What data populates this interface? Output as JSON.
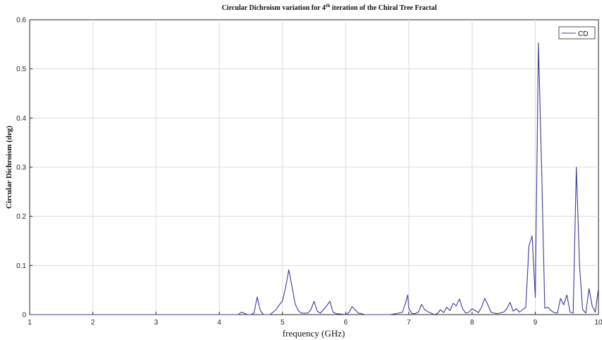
{
  "chart_data": {
    "type": "line",
    "title": {
      "prefix": "Circular Dichroism variation for 4",
      "superscript": "th",
      "suffix": " iteration of the Chiral Tree Fractal"
    },
    "xlabel": "frequency (GHz)",
    "ylabel": "Circular Dichroism  (deg)",
    "xlim": [
      1,
      10
    ],
    "ylim": [
      0,
      0.6
    ],
    "xticks": [
      "1",
      "2",
      "3",
      "4",
      "5",
      "6",
      "7",
      "8",
      "9",
      "10"
    ],
    "yticks": [
      "0",
      "0.1",
      "0.2",
      "0.3",
      "0.4",
      "0.5",
      "0.6"
    ],
    "grid": true,
    "legend_position": "top-right",
    "series": [
      {
        "name": "CD",
        "color": "#3b3b9c",
        "x": [
          1,
          2,
          3,
          4,
          4.2,
          4.3,
          4.35,
          4.45,
          4.5,
          4.55,
          4.6,
          4.65,
          4.7,
          4.75,
          4.8,
          4.9,
          4.95,
          5.0,
          5.05,
          5.1,
          5.15,
          5.2,
          5.25,
          5.3,
          5.4,
          5.45,
          5.5,
          5.55,
          5.6,
          5.65,
          5.7,
          5.75,
          5.8,
          5.85,
          6.0,
          6.05,
          6.1,
          6.15,
          6.2,
          6.25,
          6.3,
          6.4,
          6.5,
          6.6,
          6.7,
          6.8,
          6.9,
          6.95,
          6.98,
          7.0,
          7.05,
          7.1,
          7.15,
          7.2,
          7.25,
          7.3,
          7.35,
          7.4,
          7.45,
          7.5,
          7.55,
          7.6,
          7.65,
          7.7,
          7.75,
          7.8,
          7.85,
          7.9,
          7.95,
          8.0,
          8.05,
          8.1,
          8.15,
          8.2,
          8.25,
          8.3,
          8.35,
          8.4,
          8.5,
          8.55,
          8.6,
          8.65,
          8.7,
          8.75,
          8.8,
          8.85,
          8.9,
          8.95,
          9.0,
          9.05,
          9.1,
          9.15,
          9.2,
          9.25,
          9.3,
          9.35,
          9.4,
          9.45,
          9.5,
          9.55,
          9.6,
          9.65,
          9.7,
          9.75,
          9.8,
          9.85,
          9.9,
          9.95,
          10.0
        ],
        "values": [
          0,
          0,
          0,
          0,
          0,
          0,
          0.005,
          0,
          0,
          0.003,
          0.036,
          0.008,
          0,
          0,
          0,
          0.01,
          0.02,
          0.028,
          0.055,
          0.091,
          0.058,
          0.022,
          0.008,
          0.003,
          0.003,
          0.01,
          0.027,
          0.007,
          0.003,
          0.01,
          0.018,
          0.027,
          0.005,
          0.002,
          0,
          0.004,
          0.016,
          0.01,
          0.003,
          0.002,
          0,
          0,
          0,
          0,
          0,
          0.002,
          0.005,
          0.025,
          0.04,
          0.012,
          0.002,
          0.002,
          0.005,
          0.021,
          0.01,
          0.006,
          0.003,
          0,
          0.002,
          0.01,
          0.004,
          0.015,
          0.008,
          0.023,
          0.018,
          0.032,
          0.012,
          0.003,
          0.005,
          0.012,
          0.008,
          0.004,
          0.015,
          0.033,
          0.02,
          0.005,
          0.003,
          0.002,
          0.005,
          0.012,
          0.025,
          0.007,
          0.012,
          0.005,
          0.01,
          0.015,
          0.14,
          0.16,
          0.035,
          0.553,
          0.3,
          0.013,
          0.015,
          0.008,
          0.004,
          0.003,
          0.033,
          0.02,
          0.04,
          0.005,
          0.003,
          0.3,
          0.1,
          0.01,
          0.003,
          0.053,
          0.018,
          0.005,
          0.053
        ]
      }
    ]
  }
}
